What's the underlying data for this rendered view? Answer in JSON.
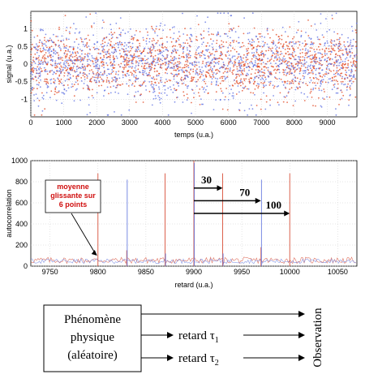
{
  "chart_data": [
    {
      "type": "scatter",
      "xlabel": "temps (u.a.)",
      "ylabel": "signal (u.a.)",
      "xlim": [
        0,
        9900
      ],
      "ylim": [
        -1.5,
        1.5
      ],
      "xticks": [
        "0",
        "1000",
        "2000",
        "3000",
        "4000",
        "5000",
        "6000",
        "7000",
        "8000",
        "9000"
      ],
      "yticks": [
        "1",
        "0.5",
        "0",
        "-0.5",
        "-1"
      ],
      "grid": true,
      "series": [
        {
          "color": "#e0431c",
          "spread": 0.45,
          "count": 1600
        },
        {
          "color": "#5b6ee1",
          "spread": 0.55,
          "count": 1400
        }
      ]
    },
    {
      "type": "line",
      "xlabel": "retard (u.a.)",
      "ylabel": "autocorrelation",
      "xlim": [
        9730,
        10070
      ],
      "ylim": [
        0,
        1000
      ],
      "xticks": [
        "9750",
        "9800",
        "9850",
        "9900",
        "9950",
        "10000",
        "10050"
      ],
      "yticks": [
        "1000",
        "800",
        "600",
        "400",
        "200",
        "0"
      ],
      "grid": true,
      "peaks_red": [
        {
          "x": 9800,
          "y": 880
        },
        {
          "x": 9830,
          "y": 150
        },
        {
          "x": 9870,
          "y": 880
        },
        {
          "x": 9900,
          "y": 1000
        },
        {
          "x": 9930,
          "y": 880
        },
        {
          "x": 9970,
          "y": 180
        },
        {
          "x": 10000,
          "y": 880
        }
      ],
      "peaks_blue": [
        {
          "x": 9830,
          "y": 820
        },
        {
          "x": 9900,
          "y": 980
        },
        {
          "x": 9970,
          "y": 820
        },
        {
          "x": 9870,
          "y": 120
        },
        {
          "x": 9930,
          "y": 120
        }
      ],
      "lags": [
        {
          "label": "30",
          "from": 9900,
          "to": 9930,
          "y": 740
        },
        {
          "label": "70",
          "from": 9900,
          "to": 9970,
          "y": 620
        },
        {
          "label": "100",
          "from": 9900,
          "to": 10000,
          "y": 500
        }
      ],
      "annotation": {
        "lines": [
          "moyenne",
          "glissante sur",
          "6 points"
        ],
        "target_x": 9800
      }
    }
  ],
  "diagram": {
    "source_lines": [
      "Phénomène",
      "physique",
      "(aléatoire)"
    ],
    "delay1": "retard τ",
    "delay1_sub": "1",
    "delay2": "retard τ",
    "delay2_sub": "2",
    "output": "Observation"
  }
}
